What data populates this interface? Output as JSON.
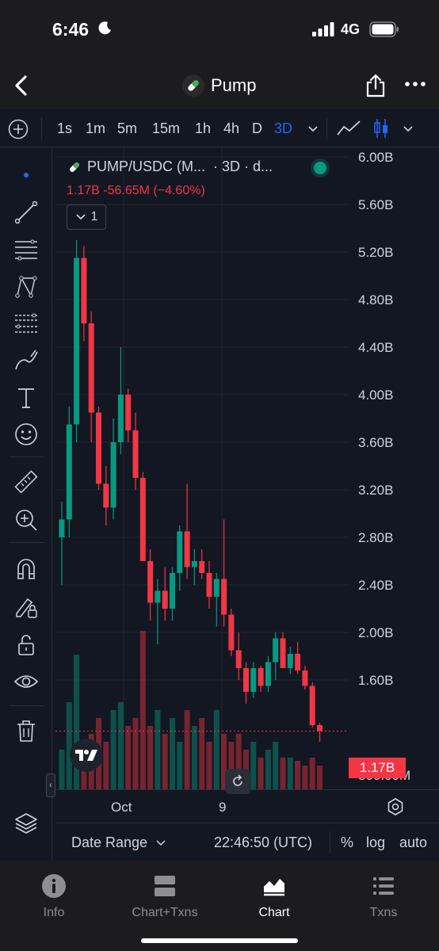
{
  "status_bar": {
    "time": "6:46",
    "network": "4G"
  },
  "navbar": {
    "title": "Pump"
  },
  "toolbar": {
    "intervals": [
      "1s",
      "1m",
      "5m",
      "15m",
      "1h",
      "4h",
      "D",
      "3D"
    ],
    "active_interval": "3D",
    "accent_color": "#2962ff"
  },
  "legend": {
    "symbol": "PUMP/USDC (M...",
    "interval_text": "· 3D · d...",
    "change": "1.17B  -56.65M (−4.60%)",
    "indicator_count": "1"
  },
  "chart_data": {
    "type": "candlestick",
    "series_name": "PUMP/USDC",
    "interval": "3D",
    "y_ticks": [
      "6.00B",
      "5.60B",
      "5.20B",
      "4.80B",
      "4.40B",
      "4.00B",
      "3.60B",
      "3.20B",
      "2.80B",
      "2.40B",
      "2.00B",
      "1.60B",
      "800.00M"
    ],
    "ylim": [
      0.8,
      6.0
    ],
    "y_unit": "B",
    "x_ticks": [
      "Oct",
      "9"
    ],
    "last_price_label": "1.17B",
    "up_color": "#089981",
    "down_color": "#f23645",
    "candles": [
      {
        "o": 2.8,
        "h": 3.1,
        "l": 2.4,
        "c": 2.95
      },
      {
        "o": 2.95,
        "h": 3.9,
        "l": 2.8,
        "c": 3.75
      },
      {
        "o": 3.75,
        "h": 5.3,
        "l": 3.6,
        "c": 5.15
      },
      {
        "o": 5.15,
        "h": 5.25,
        "l": 4.45,
        "c": 4.6
      },
      {
        "o": 4.6,
        "h": 4.7,
        "l": 3.6,
        "c": 3.85
      },
      {
        "o": 3.85,
        "h": 3.9,
        "l": 3.2,
        "c": 3.25
      },
      {
        "o": 3.25,
        "h": 3.4,
        "l": 2.9,
        "c": 3.05
      },
      {
        "o": 3.05,
        "h": 3.8,
        "l": 2.95,
        "c": 3.6
      },
      {
        "o": 3.6,
        "h": 4.4,
        "l": 3.5,
        "c": 4.0
      },
      {
        "o": 4.0,
        "h": 4.05,
        "l": 3.6,
        "c": 3.7
      },
      {
        "o": 3.7,
        "h": 3.85,
        "l": 3.2,
        "c": 3.3
      },
      {
        "o": 3.3,
        "h": 3.35,
        "l": 2.6,
        "c": 2.6
      },
      {
        "o": 2.6,
        "h": 2.7,
        "l": 2.1,
        "c": 2.25
      },
      {
        "o": 2.25,
        "h": 2.45,
        "l": 1.9,
        "c": 2.35
      },
      {
        "o": 2.35,
        "h": 2.55,
        "l": 2.1,
        "c": 2.2
      },
      {
        "o": 2.2,
        "h": 2.55,
        "l": 2.1,
        "c": 2.5
      },
      {
        "o": 2.5,
        "h": 2.9,
        "l": 2.35,
        "c": 2.85
      },
      {
        "o": 2.85,
        "h": 3.25,
        "l": 2.45,
        "c": 2.55
      },
      {
        "o": 2.55,
        "h": 2.7,
        "l": 2.4,
        "c": 2.6
      },
      {
        "o": 2.6,
        "h": 2.7,
        "l": 2.45,
        "c": 2.5
      },
      {
        "o": 2.5,
        "h": 2.6,
        "l": 2.2,
        "c": 2.3
      },
      {
        "o": 2.3,
        "h": 2.5,
        "l": 2.05,
        "c": 2.45
      },
      {
        "o": 2.45,
        "h": 2.95,
        "l": 2.05,
        "c": 2.15
      },
      {
        "o": 2.15,
        "h": 2.2,
        "l": 1.8,
        "c": 1.85
      },
      {
        "o": 1.85,
        "h": 2.0,
        "l": 1.6,
        "c": 1.7
      },
      {
        "o": 1.7,
        "h": 1.75,
        "l": 1.4,
        "c": 1.5
      },
      {
        "o": 1.5,
        "h": 1.75,
        "l": 1.45,
        "c": 1.7
      },
      {
        "o": 1.7,
        "h": 1.72,
        "l": 1.5,
        "c": 1.55
      },
      {
        "o": 1.55,
        "h": 1.8,
        "l": 1.5,
        "c": 1.75
      },
      {
        "o": 1.75,
        "h": 2.0,
        "l": 1.6,
        "c": 1.95
      },
      {
        "o": 1.95,
        "h": 2.0,
        "l": 1.7,
        "c": 1.7
      },
      {
        "o": 1.7,
        "h": 1.88,
        "l": 1.65,
        "c": 1.82
      },
      {
        "o": 1.82,
        "h": 1.92,
        "l": 1.65,
        "c": 1.68
      },
      {
        "o": 1.68,
        "h": 1.72,
        "l": 1.52,
        "c": 1.55
      },
      {
        "o": 1.55,
        "h": 1.58,
        "l": 1.2,
        "c": 1.22
      },
      {
        "o": 1.22,
        "h": 1.24,
        "l": 1.08,
        "c": 1.17
      }
    ],
    "volumes": [
      0.25,
      0.55,
      0.85,
      0.25,
      0.35,
      0.45,
      0.3,
      0.5,
      0.55,
      0.4,
      0.45,
      1.0,
      0.4,
      0.5,
      0.35,
      0.45,
      0.3,
      0.5,
      0.4,
      0.45,
      0.3,
      0.5,
      0.35,
      0.3,
      0.35,
      0.25,
      0.3,
      0.2,
      0.25,
      0.3,
      0.2,
      0.2,
      0.18,
      0.15,
      0.2,
      0.15
    ]
  },
  "time_axis": {
    "month_label": "Oct",
    "day_label": "9"
  },
  "bottom_controls": {
    "date_range": "Date Range",
    "clock": "22:46:50 (UTC)",
    "percent": "%",
    "log": "log",
    "auto": "auto"
  },
  "tabs": [
    {
      "label": "Info",
      "icon": "info-icon"
    },
    {
      "label": "Chart+Txns",
      "icon": "split-icon"
    },
    {
      "label": "Chart",
      "icon": "chart-icon",
      "active": true
    },
    {
      "label": "Txns",
      "icon": "list-icon"
    }
  ]
}
